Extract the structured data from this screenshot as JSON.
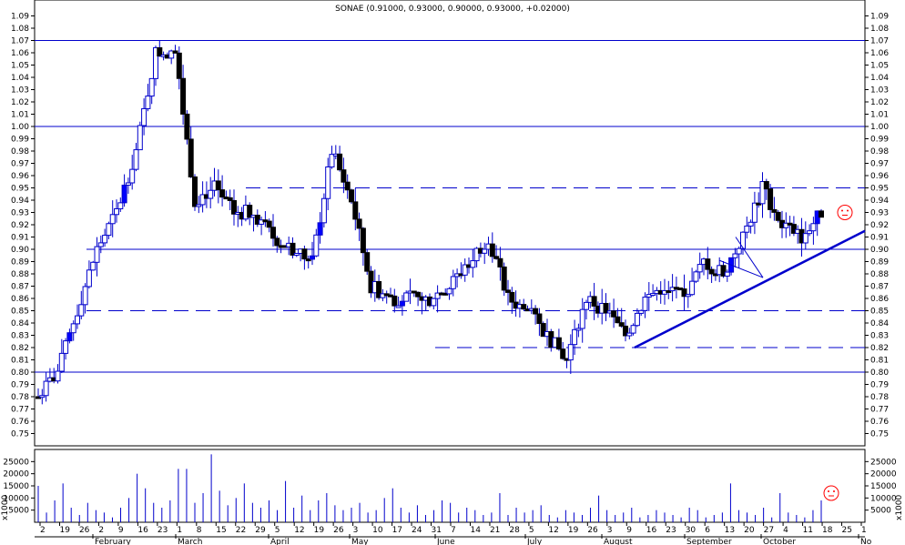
{
  "chart_data": {
    "type": "candlestick",
    "title": "SONAE (0.91000, 0.93000, 0.90000, 0.93000, +0.02000)",
    "price_axis": {
      "ylim": [
        0.74,
        1.1
      ],
      "ticks": [
        "1.09",
        "1.08",
        "1.07",
        "1.06",
        "1.05",
        "1.04",
        "1.03",
        "1.02",
        "1.01",
        "1.00",
        "0.99",
        "0.98",
        "0.97",
        "0.96",
        "0.95",
        "0.94",
        "0.93",
        "0.92",
        "0.91",
        "0.90",
        "0.89",
        "0.88",
        "0.87",
        "0.86",
        "0.85",
        "0.84",
        "0.83",
        "0.82",
        "0.81",
        "0.80",
        "0.79",
        "0.78",
        "0.77",
        "0.76",
        "0.75"
      ]
    },
    "volume_axis": {
      "ylim": [
        0,
        30000
      ],
      "ticks": [
        "25000",
        "20000",
        "15000",
        "10000",
        "5000"
      ],
      "unit_label": "x1000"
    },
    "day_ticks": [
      "2",
      "19",
      "26",
      "2",
      "9",
      "16",
      "23",
      "1",
      "8",
      "15",
      "22",
      "29",
      "5",
      "12",
      "19",
      "26",
      "3",
      "10",
      "17",
      "24",
      "31",
      "7",
      "14",
      "21",
      "28",
      "5",
      "12",
      "19",
      "26",
      "3",
      "9",
      "16",
      "23",
      "30",
      "6",
      "13",
      "20",
      "27",
      "4",
      "11",
      "18",
      "25",
      "1"
    ],
    "month_labels": [
      "February",
      "March",
      "April",
      "May",
      "June",
      "July",
      "August",
      "September",
      "October",
      "No"
    ],
    "horizontal_levels": [
      {
        "price": 1.07,
        "style": "solid"
      },
      {
        "price": 1.0,
        "style": "solid"
      },
      {
        "price": 0.95,
        "style": "dashed"
      },
      {
        "price": 0.9,
        "style": "solid"
      },
      {
        "price": 0.85,
        "style": "dashed"
      },
      {
        "price": 0.82,
        "style": "dashed"
      },
      {
        "price": 0.8,
        "style": "solid"
      }
    ],
    "trendline": {
      "from": {
        "day": "3 August",
        "price": 0.82
      },
      "to": {
        "day": "end",
        "price": 0.915
      }
    },
    "key_points": [
      {
        "date": "2 Feb",
        "price": 0.78
      },
      {
        "date": "9 Feb",
        "price": 0.8
      },
      {
        "date": "23 Feb",
        "price": 0.85
      },
      {
        "date": "2 Mar",
        "price": 0.9
      },
      {
        "date": "9 Mar",
        "price": 0.93
      },
      {
        "date": "23 Mar",
        "price": 0.98
      },
      {
        "date": "1 Apr",
        "price": 1.06
      },
      {
        "date": "8 Apr",
        "price": 1.06
      },
      {
        "date": "15 Apr",
        "price": 0.94
      },
      {
        "date": "22 Apr",
        "price": 0.95
      },
      {
        "date": "29 Apr",
        "price": 0.93
      },
      {
        "date": "5 May",
        "price": 0.93
      },
      {
        "date": "12 May",
        "price": 0.91
      },
      {
        "date": "19 May",
        "price": 0.9
      },
      {
        "date": "26 May",
        "price": 0.89
      },
      {
        "date": "3 Jun",
        "price": 0.98
      },
      {
        "date": "10 Jun",
        "price": 0.94
      },
      {
        "date": "17 Jun",
        "price": 0.87
      },
      {
        "date": "24 Jun",
        "price": 0.86
      },
      {
        "date": "31 Jun",
        "price": 0.86
      },
      {
        "date": "7 Jul",
        "price": 0.86
      },
      {
        "date": "14 Jul",
        "price": 0.87
      },
      {
        "date": "21 Jul",
        "price": 0.89
      },
      {
        "date": "28 Jul",
        "price": 0.91
      },
      {
        "date": "5 Aug",
        "price": 0.86
      },
      {
        "date": "12 Aug",
        "price": 0.85
      },
      {
        "date": "19 Aug",
        "price": 0.83
      },
      {
        "date": "26 Aug",
        "price": 0.81
      },
      {
        "date": "3 Sep",
        "price": 0.86
      },
      {
        "date": "9 Sep",
        "price": 0.85
      },
      {
        "date": "16 Sep",
        "price": 0.83
      },
      {
        "date": "23 Sep",
        "price": 0.86
      },
      {
        "date": "30 Sep",
        "price": 0.87
      },
      {
        "date": "6 Oct",
        "price": 0.86
      },
      {
        "date": "13 Oct",
        "price": 0.89
      },
      {
        "date": "20 Oct",
        "price": 0.88
      },
      {
        "date": "27 Oct",
        "price": 0.91
      },
      {
        "date": "4 Nov",
        "price": 0.95
      },
      {
        "date": "11 Nov",
        "price": 0.92
      },
      {
        "date": "18 Nov",
        "price": 0.91
      },
      {
        "date": "21 Nov",
        "price": 0.93
      }
    ],
    "volume_bars": [
      15000,
      4000,
      9000,
      16000,
      6000,
      3000,
      8000,
      5000,
      4000,
      2000,
      6000,
      10000,
      20000,
      14000,
      8000,
      6000,
      9000,
      22000,
      22000,
      8000,
      12000,
      28000,
      13000,
      7000,
      10000,
      16000,
      8000,
      6000,
      9000,
      5000,
      17000,
      6000,
      11000,
      5000,
      9000,
      12000,
      7000,
      5000,
      6000,
      8000,
      4000,
      5000,
      10000,
      14000,
      6000,
      4000,
      7000,
      3000,
      5000,
      9000,
      8000,
      4000,
      6000,
      5000,
      3000,
      4000,
      12000,
      3000,
      6000,
      4000,
      5000,
      7000,
      3000,
      2000,
      5000,
      4000,
      3000,
      6000,
      11000,
      5000,
      3000,
      4000,
      6000,
      2000,
      3000,
      5000,
      4000,
      3000,
      2000,
      6000,
      5000,
      2000,
      3000,
      4000,
      16000,
      5000,
      4000,
      3000,
      6000,
      2000,
      12000,
      4000,
      3000,
      2000,
      5000,
      9000
    ],
    "colors": {
      "axis": "#000000",
      "line": "#0000cc",
      "up_candle": "#0000ff",
      "down_candle": "#000000",
      "bar_outline": "#0000cc",
      "smiley": "#ff0000"
    },
    "smiley_icons": [
      "smiley-price",
      "smiley-volume"
    ]
  }
}
